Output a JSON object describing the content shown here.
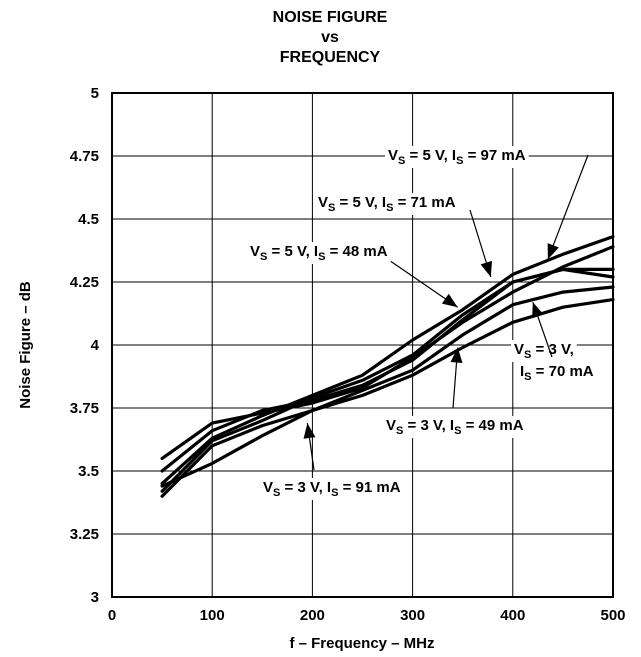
{
  "chart_data": {
    "type": "line",
    "title_lines": [
      "NOISE FIGURE",
      "vs",
      "FREQUENCY"
    ],
    "xlabel": "f – Frequency – MHz",
    "ylabel": "Noise Figure – dB",
    "xlim": [
      0,
      500
    ],
    "ylim": [
      3,
      5
    ],
    "x_ticks": [
      "0",
      "100",
      "200",
      "300",
      "400",
      "500"
    ],
    "y_ticks": [
      "3",
      "3.25",
      "3.5",
      "3.75",
      "4",
      "4.25",
      "4.5",
      "4.75",
      "5"
    ],
    "grid": true,
    "x": [
      50,
      100,
      150,
      200,
      250,
      300,
      350,
      400,
      450,
      500
    ],
    "series": [
      {
        "name": "VS = 5 V, IS = 97 mA",
        "values": [
          3.45,
          3.63,
          3.72,
          3.8,
          3.88,
          4.02,
          4.14,
          4.28,
          4.36,
          4.43
        ]
      },
      {
        "name": "VS = 5 V, IS = 71 mA",
        "values": [
          3.42,
          3.62,
          3.7,
          3.79,
          3.86,
          3.96,
          4.12,
          4.25,
          4.3,
          4.3
        ]
      },
      {
        "name": "VS = 5 V, IS = 48 mA",
        "values": [
          3.5,
          3.66,
          3.74,
          3.78,
          3.84,
          3.94,
          4.1,
          4.25,
          4.3,
          4.27
        ]
      },
      {
        "name": "VS = 3 V, IS = 70 mA",
        "values": [
          3.4,
          3.6,
          3.68,
          3.74,
          3.8,
          3.88,
          3.99,
          4.09,
          4.15,
          4.18
        ]
      },
      {
        "name": "VS = 3 V, IS = 49 mA",
        "values": [
          3.44,
          3.53,
          3.64,
          3.74,
          3.82,
          3.9,
          4.04,
          4.16,
          4.21,
          4.23
        ]
      },
      {
        "name": "VS = 3 V, IS = 91 mA",
        "values": [
          3.55,
          3.69,
          3.73,
          3.77,
          3.83,
          3.95,
          4.09,
          4.21,
          4.31,
          4.39
        ]
      }
    ],
    "annotations": [
      {
        "main": "V",
        "sub": "S",
        "text": " = 5 V, I",
        "sub2": "S",
        "text2": " = 97 mA"
      },
      {
        "main": "V",
        "sub": "S",
        "text": " = 5 V, I",
        "sub2": "S",
        "text2": " = 71 mA"
      },
      {
        "main": "V",
        "sub": "S",
        "text": " = 5 V, I",
        "sub2": "S",
        "text2": " = 48 mA"
      },
      {
        "main": "V",
        "sub": "S",
        "text": " = 3 V,",
        "sub2": "",
        "text2": ""
      },
      {
        "main": "I",
        "sub": "S",
        "text": " = 70 mA",
        "sub2": "",
        "text2": ""
      },
      {
        "main": "V",
        "sub": "S",
        "text": " = 3 V, I",
        "sub2": "S",
        "text2": " = 49 mA"
      },
      {
        "main": "V",
        "sub": "S",
        "text": " = 3 V, I",
        "sub2": "S",
        "text2": " = 91 mA"
      }
    ],
    "arrow_targets": [
      {
        "x": 435,
        "y": 4.34
      },
      {
        "x": 378,
        "y": 4.27
      },
      {
        "x": 345,
        "y": 4.15
      },
      {
        "x": 420,
        "y": 4.17
      },
      {
        "x": 345,
        "y": 3.99
      },
      {
        "x": 195,
        "y": 3.69
      }
    ]
  }
}
